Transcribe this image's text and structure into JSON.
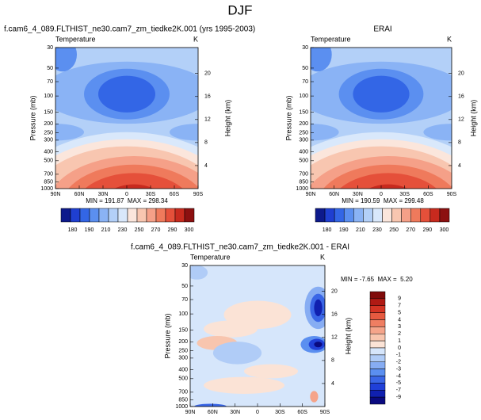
{
  "title": "DJF",
  "chart_data": [
    {
      "type": "contour",
      "title": "f.cam6_4_089.FLTHIST_ne30.cam7_zm_tiedke2K.001 (yrs 1995-2003)",
      "left_label": "Temperature",
      "right_label": "K",
      "ylabel": "Pressure (mb)",
      "y2label": "Height (km)",
      "log_y": true,
      "ylim": [
        1000,
        30
      ],
      "yticks": [
        30,
        50,
        70,
        100,
        150,
        200,
        250,
        300,
        400,
        500,
        700,
        850,
        1000
      ],
      "y2lim": [
        0,
        24.5
      ],
      "y2ticks": [
        4,
        8,
        12,
        16,
        20
      ],
      "xlim": [
        90,
        -90
      ],
      "xticks": [
        {
          "value": 90,
          "label": "90N"
        },
        {
          "value": 60,
          "label": "60N"
        },
        {
          "value": 30,
          "label": "30N"
        },
        0,
        {
          "value": -30,
          "label": "30S"
        },
        {
          "value": -60,
          "label": "60S"
        },
        {
          "value": -90,
          "label": "90S"
        }
      ],
      "stats": "MIN = 191.87  MAX = 298.34",
      "colorbar": {
        "orientation": "horizontal",
        "colors": [
          "#0d1a8c",
          "#1f3fd1",
          "#3366e6",
          "#5b8ff0",
          "#8ab3f5",
          "#b3d0f8",
          "#d9e8fb",
          "#fbe6dc",
          "#f8c6b0",
          "#f5a088",
          "#ef7a5c",
          "#e5503a",
          "#c82a1e",
          "#8c1010"
        ],
        "ticks": [
          180,
          190,
          210,
          230,
          250,
          270,
          290,
          300
        ]
      }
    },
    {
      "type": "contour",
      "title": "ERAI",
      "left_label": "Temperature",
      "right_label": "K",
      "ylabel": "Pressure (mb)",
      "y2label": "Height (km)",
      "log_y": true,
      "ylim": [
        1000,
        30
      ],
      "yticks": [
        30,
        50,
        70,
        100,
        150,
        200,
        250,
        300,
        400,
        500,
        700,
        850,
        1000
      ],
      "y2lim": [
        0,
        24.5
      ],
      "y2ticks": [
        4,
        8,
        12,
        16,
        20
      ],
      "xlim": [
        90,
        -90
      ],
      "xticks": [
        {
          "value": 90,
          "label": "90N"
        },
        {
          "value": 60,
          "label": "60N"
        },
        {
          "value": 30,
          "label": "30N"
        },
        0,
        {
          "value": -30,
          "label": "30S"
        },
        {
          "value": -60,
          "label": "60S"
        },
        {
          "value": -90,
          "label": "90S"
        }
      ],
      "stats": "MIN = 190.59  MAX = 299.48",
      "colorbar": {
        "orientation": "horizontal",
        "colors": [
          "#0d1a8c",
          "#1f3fd1",
          "#3366e6",
          "#5b8ff0",
          "#8ab3f5",
          "#b3d0f8",
          "#d9e8fb",
          "#fbe6dc",
          "#f8c6b0",
          "#f5a088",
          "#ef7a5c",
          "#e5503a",
          "#c82a1e",
          "#8c1010"
        ],
        "ticks": [
          180,
          190,
          210,
          230,
          250,
          270,
          290,
          300
        ]
      }
    },
    {
      "type": "contour",
      "title": "f.cam6_4_089.FLTHIST_ne30.cam7_zm_tiedke2K.001 - ERAI",
      "left_label": "Temperature",
      "right_label": "K",
      "ylabel": "Pressure (mb)",
      "y2label": "Height (km)",
      "log_y": true,
      "ylim": [
        1000,
        30
      ],
      "yticks": [
        30,
        50,
        70,
        100,
        150,
        200,
        250,
        300,
        400,
        500,
        700,
        850,
        1000
      ],
      "y2lim": [
        0,
        24.5
      ],
      "y2ticks": [
        4,
        8,
        12,
        16,
        20
      ],
      "xlim": [
        90,
        -90
      ],
      "xticks": [
        {
          "value": 90,
          "label": "90N"
        },
        {
          "value": 60,
          "label": "60N"
        },
        {
          "value": 30,
          "label": "30N"
        },
        0,
        {
          "value": -30,
          "label": "30S"
        },
        {
          "value": -60,
          "label": "60S"
        },
        {
          "value": -90,
          "label": "90S"
        }
      ],
      "stats": "MIN = -7.65  MAX =  5.20",
      "colorbar": {
        "orientation": "vertical",
        "colors": [
          "#800a0a",
          "#b01a14",
          "#d43424",
          "#e65a40",
          "#ef7e62",
          "#f5a48a",
          "#f8c5ae",
          "#fbe3d6",
          "#d6e6fb",
          "#b0ccf7",
          "#87adf3",
          "#5b8ff0",
          "#3a66e6",
          "#2040d8",
          "#1020b0",
          "#0a0a80"
        ],
        "ticks": [
          9,
          7,
          5,
          4,
          3,
          2,
          1,
          0,
          -1,
          -2,
          -3,
          -4,
          -5,
          -7,
          -9
        ]
      }
    }
  ]
}
